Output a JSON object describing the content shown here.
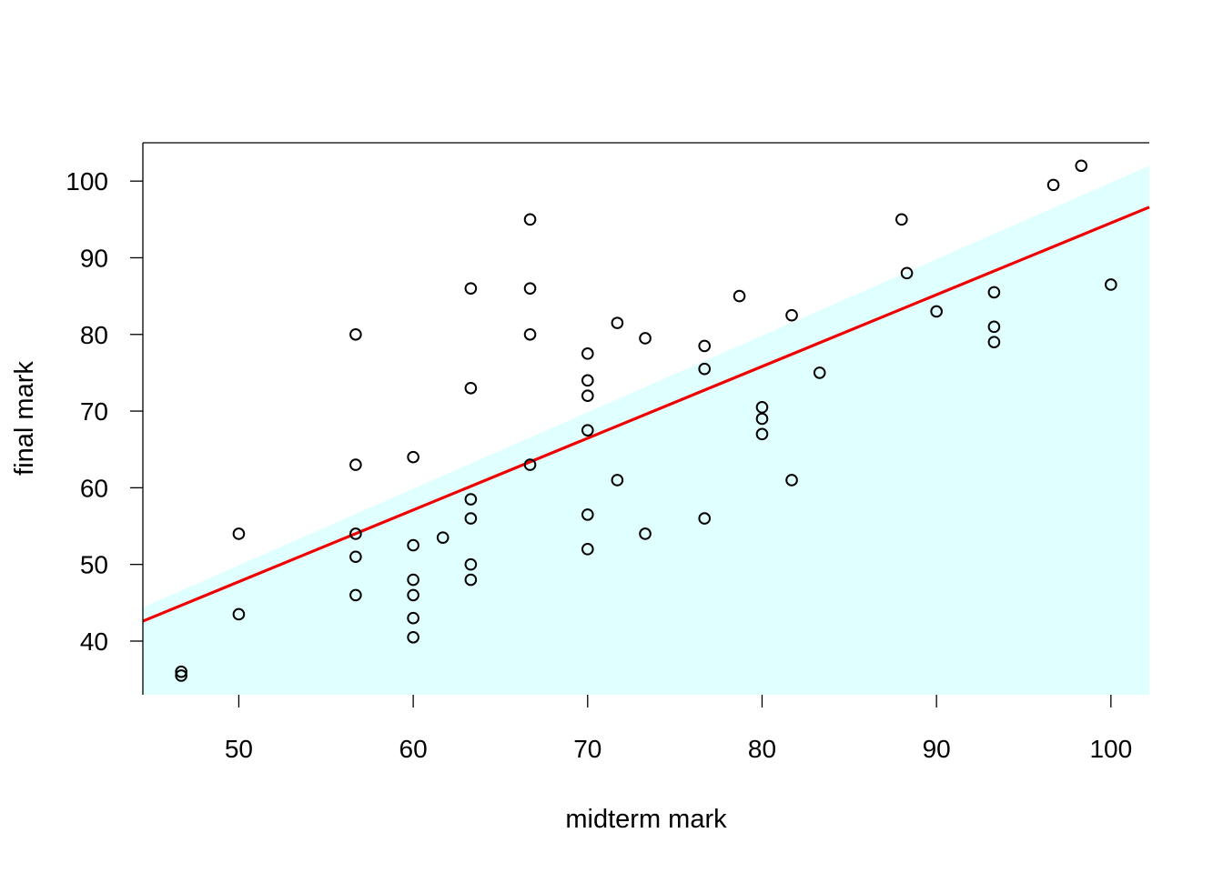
{
  "chart_data": {
    "type": "scatter",
    "xlabel": "midterm mark",
    "ylabel": "final mark",
    "xlim": [
      44.5,
      102.2
    ],
    "ylim": [
      33,
      105
    ],
    "x_ticks": [
      50,
      60,
      70,
      80,
      90,
      100
    ],
    "y_ticks": [
      40,
      50,
      60,
      70,
      80,
      90,
      100
    ],
    "x_tick_labels": [
      "50",
      "60",
      "70",
      "80",
      "90",
      "100"
    ],
    "y_tick_labels": [
      "40",
      "50",
      "60",
      "70",
      "80",
      "90",
      "100"
    ],
    "grid": false,
    "legend": "none",
    "regression_line": {
      "color": "#ee0000",
      "x": [
        44.5,
        102.2
      ],
      "y": [
        42.6,
        96.6
      ]
    },
    "shaded_region": {
      "color": "#e0ffff",
      "x": [
        44.5,
        102.2
      ],
      "upper_y": [
        44.4,
        102.0
      ]
    },
    "points": [
      {
        "x": 46.7,
        "y": 36.0
      },
      {
        "x": 46.7,
        "y": 35.5
      },
      {
        "x": 50.0,
        "y": 54.0
      },
      {
        "x": 50.0,
        "y": 43.5
      },
      {
        "x": 56.7,
        "y": 80.0
      },
      {
        "x": 56.7,
        "y": 63.0
      },
      {
        "x": 56.7,
        "y": 54.0
      },
      {
        "x": 56.7,
        "y": 51.0
      },
      {
        "x": 56.7,
        "y": 46.0
      },
      {
        "x": 60.0,
        "y": 64.0
      },
      {
        "x": 60.0,
        "y": 52.5
      },
      {
        "x": 60.0,
        "y": 48.0
      },
      {
        "x": 60.0,
        "y": 46.0
      },
      {
        "x": 60.0,
        "y": 43.0
      },
      {
        "x": 60.0,
        "y": 40.5
      },
      {
        "x": 61.7,
        "y": 53.5
      },
      {
        "x": 63.3,
        "y": 86.0
      },
      {
        "x": 63.3,
        "y": 73.0
      },
      {
        "x": 63.3,
        "y": 58.5
      },
      {
        "x": 63.3,
        "y": 56.0
      },
      {
        "x": 63.3,
        "y": 50.0
      },
      {
        "x": 63.3,
        "y": 48.0
      },
      {
        "x": 66.7,
        "y": 95.0
      },
      {
        "x": 66.7,
        "y": 86.0
      },
      {
        "x": 66.7,
        "y": 80.0
      },
      {
        "x": 66.7,
        "y": 63.0
      },
      {
        "x": 70.0,
        "y": 77.5
      },
      {
        "x": 70.0,
        "y": 74.0
      },
      {
        "x": 70.0,
        "y": 72.0
      },
      {
        "x": 70.0,
        "y": 67.5
      },
      {
        "x": 70.0,
        "y": 56.5
      },
      {
        "x": 70.0,
        "y": 52.0
      },
      {
        "x": 71.7,
        "y": 81.5
      },
      {
        "x": 71.7,
        "y": 61.0
      },
      {
        "x": 73.3,
        "y": 79.5
      },
      {
        "x": 73.3,
        "y": 54.0
      },
      {
        "x": 76.7,
        "y": 78.5
      },
      {
        "x": 76.7,
        "y": 75.5
      },
      {
        "x": 76.7,
        "y": 56.0
      },
      {
        "x": 78.7,
        "y": 85.0
      },
      {
        "x": 80.0,
        "y": 70.5
      },
      {
        "x": 80.0,
        "y": 69.0
      },
      {
        "x": 80.0,
        "y": 67.0
      },
      {
        "x": 81.7,
        "y": 82.5
      },
      {
        "x": 81.7,
        "y": 61.0
      },
      {
        "x": 83.3,
        "y": 75.0
      },
      {
        "x": 88.0,
        "y": 95.0
      },
      {
        "x": 88.3,
        "y": 88.0
      },
      {
        "x": 90.0,
        "y": 83.0
      },
      {
        "x": 93.3,
        "y": 85.5
      },
      {
        "x": 93.3,
        "y": 81.0
      },
      {
        "x": 93.3,
        "y": 79.0
      },
      {
        "x": 96.7,
        "y": 99.5
      },
      {
        "x": 98.3,
        "y": 102.0
      },
      {
        "x": 100.0,
        "y": 86.5
      }
    ]
  }
}
